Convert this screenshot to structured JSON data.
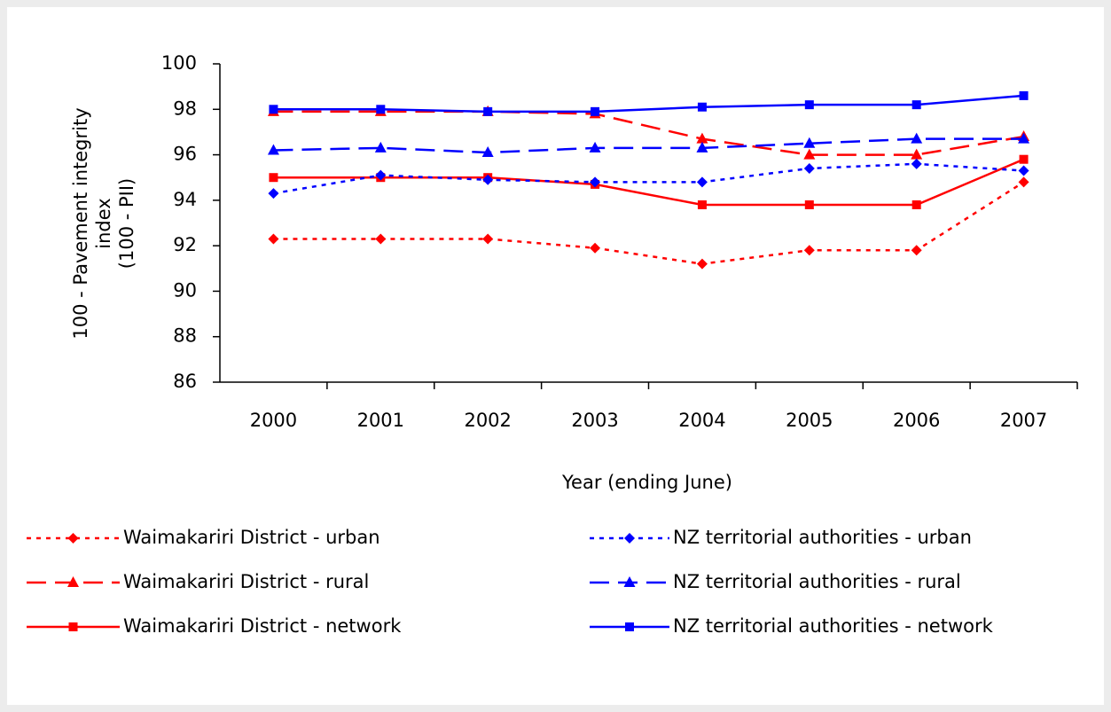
{
  "chart_data": {
    "type": "line",
    "y_label": [
      "100 - Pavement integrity",
      "index",
      "(100 - PII)"
    ],
    "x_label": "Year (ending June)",
    "categories": [
      "2000",
      "2001",
      "2002",
      "2003",
      "2004",
      "2005",
      "2006",
      "2007"
    ],
    "ylim": [
      86,
      100
    ],
    "yticks": [
      86,
      88,
      90,
      92,
      94,
      96,
      98,
      100
    ],
    "grid": false,
    "series": [
      {
        "name": "Waimakariri District - urban",
        "color": "#ff0000",
        "style": "dotted",
        "marker": "diamond",
        "values": [
          92.3,
          92.3,
          92.3,
          91.9,
          91.2,
          91.8,
          91.8,
          94.8
        ]
      },
      {
        "name": "Waimakariri District - rural",
        "color": "#ff0000",
        "style": "dashed",
        "marker": "triangle",
        "values": [
          97.9,
          97.9,
          97.9,
          97.8,
          96.7,
          96.0,
          96.0,
          96.8
        ]
      },
      {
        "name": "Waimakariri District - network",
        "color": "#ff0000",
        "style": "solid",
        "marker": "square",
        "values": [
          95.0,
          95.0,
          95.0,
          94.7,
          93.8,
          93.8,
          93.8,
          95.8
        ]
      },
      {
        "name": "NZ territorial authorities - urban",
        "color": "#0000ff",
        "style": "dotted",
        "marker": "diamond",
        "values": [
          94.3,
          95.1,
          94.9,
          94.8,
          94.8,
          95.4,
          95.6,
          95.3
        ]
      },
      {
        "name": "NZ territorial authorities - rural",
        "color": "#0000ff",
        "style": "dashed",
        "marker": "triangle",
        "values": [
          96.2,
          96.3,
          96.1,
          96.3,
          96.3,
          96.5,
          96.7,
          96.7
        ]
      },
      {
        "name": "NZ territorial authorities - network",
        "color": "#0000ff",
        "style": "solid",
        "marker": "square",
        "values": [
          98.0,
          98.0,
          97.9,
          97.9,
          98.1,
          98.2,
          98.2,
          98.6
        ]
      }
    ]
  }
}
